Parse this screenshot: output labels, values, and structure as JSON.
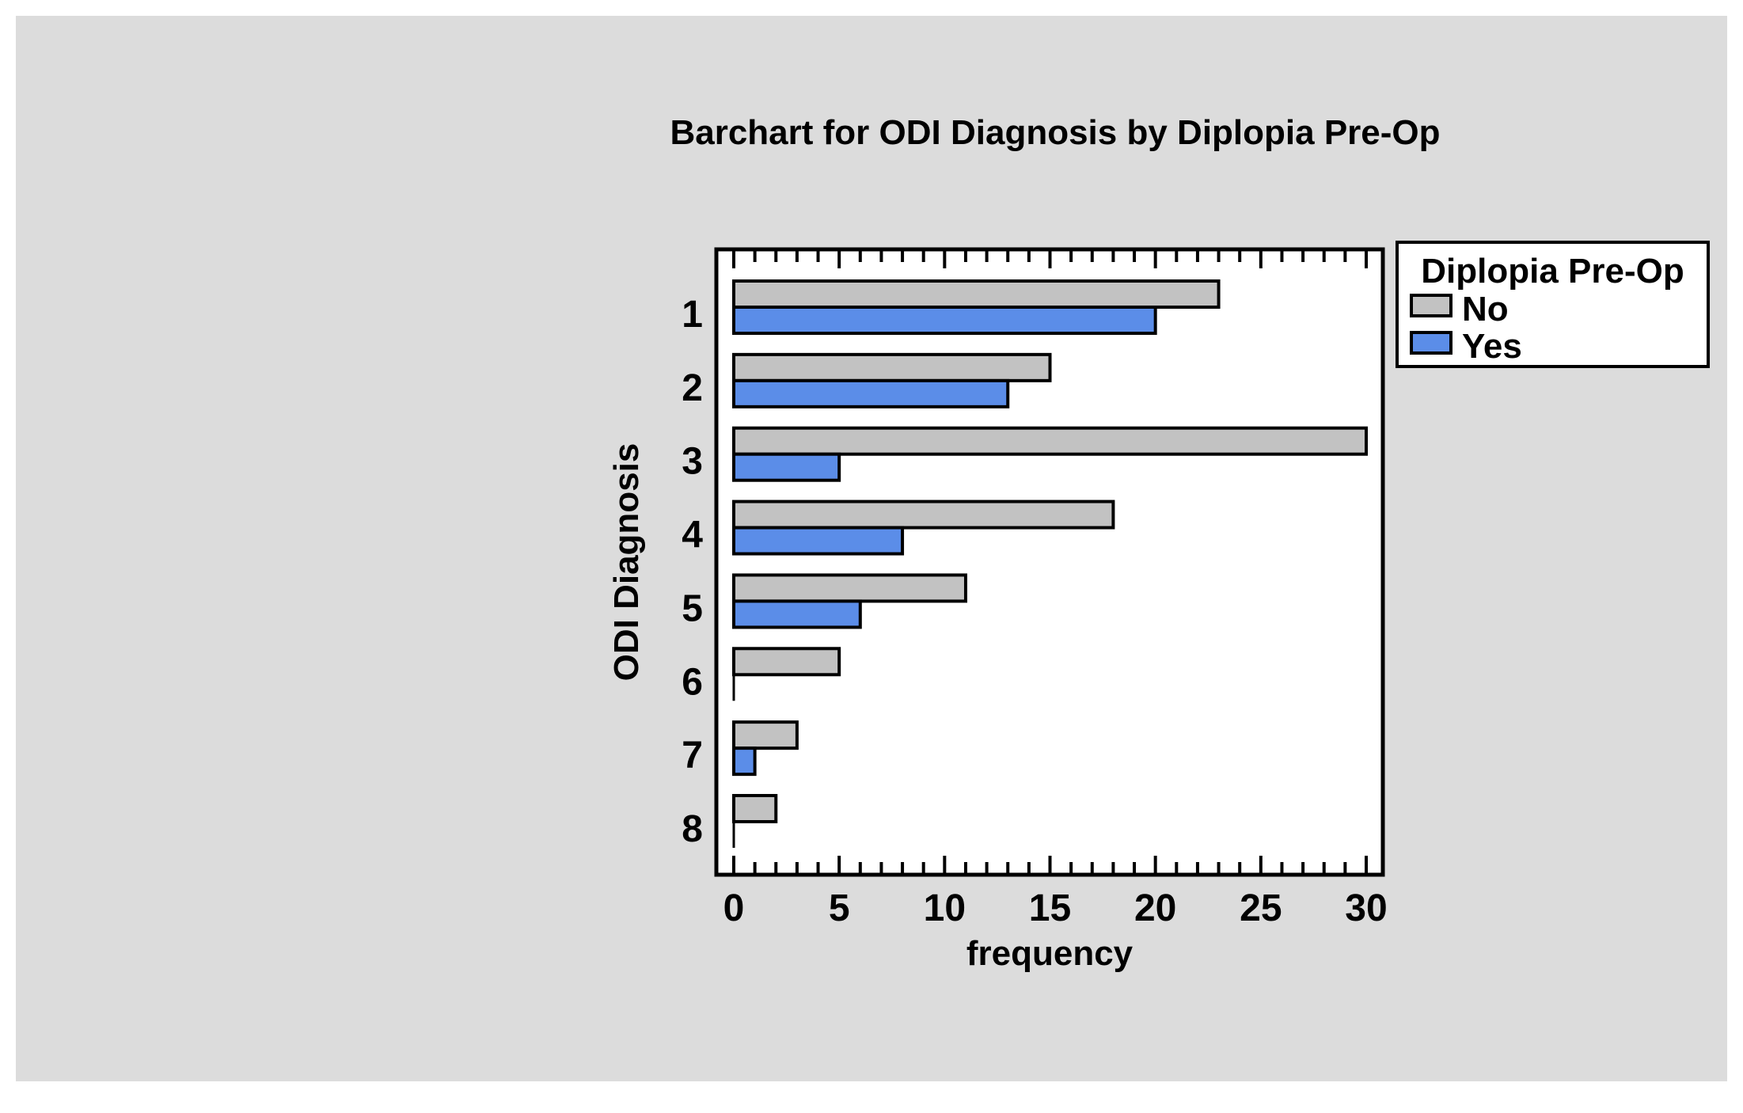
{
  "page": {
    "background_color": "#ffffff",
    "canvas_color": "#dcdcdc"
  },
  "chart_data": {
    "type": "bar",
    "orientation": "horizontal",
    "title": "Barchart for ODI Diagnosis by Diplopia Pre-Op",
    "xlabel": "frequency",
    "ylabel": "ODI Diagnosis",
    "categories": [
      "1",
      "2",
      "3",
      "4",
      "5",
      "6",
      "7",
      "8"
    ],
    "series": [
      {
        "name": "No",
        "color": "#c2c2c2",
        "values": [
          23,
          15,
          30,
          18,
          11,
          5,
          3,
          2
        ]
      },
      {
        "name": "Yes",
        "color": "#5b8de8",
        "values": [
          20,
          13,
          5,
          8,
          6,
          0,
          1,
          0
        ]
      }
    ],
    "xlim": [
      0,
      30
    ],
    "x_ticks": [
      0,
      5,
      10,
      15,
      20,
      25,
      30
    ],
    "minor_tick_step": 1,
    "grid": false,
    "legend": {
      "title": "Diplopia Pre-Op",
      "position": "top-right"
    },
    "plot_background": "#ffffff",
    "bar_border_color": "#000000",
    "text_color": "#000000"
  }
}
